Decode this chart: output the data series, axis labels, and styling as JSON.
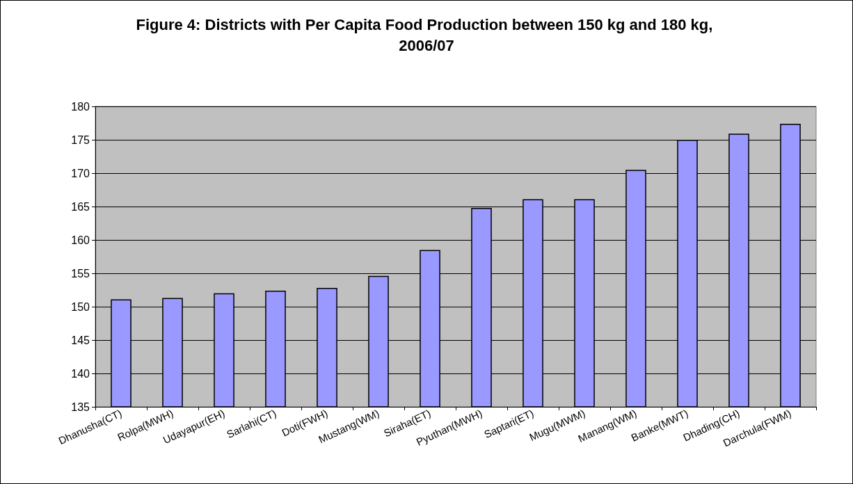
{
  "chart_data": {
    "type": "bar",
    "title": "Figure 4: Districts with Per Capita Food Production between 150 kg and 180 kg, 2006/07",
    "categories": [
      "Dhanusha(CT)",
      "Rolpa(MWH)",
      "Udayapur(EH)",
      "Sarlahi(CT)",
      "Doti(FWH)",
      "Mustang(WM)",
      "Siraha(ET)",
      "Pyuthan(MWH)",
      "Saptari(ET)",
      "Mugu(MWM)",
      "Manang(WM)",
      "Banke(MWT)",
      "Dhading(CH)",
      "Darchula(FWM)"
    ],
    "values": [
      151.1,
      151.3,
      152.0,
      152.4,
      152.8,
      154.6,
      158.5,
      164.8,
      166.1,
      166.1,
      170.5,
      175.0,
      175.9,
      177.4
    ],
    "color": "#9999ff",
    "ylim": [
      135,
      180
    ],
    "yticks": [
      135,
      140,
      145,
      150,
      155,
      160,
      165,
      170,
      175,
      180
    ],
    "grid": "y"
  }
}
